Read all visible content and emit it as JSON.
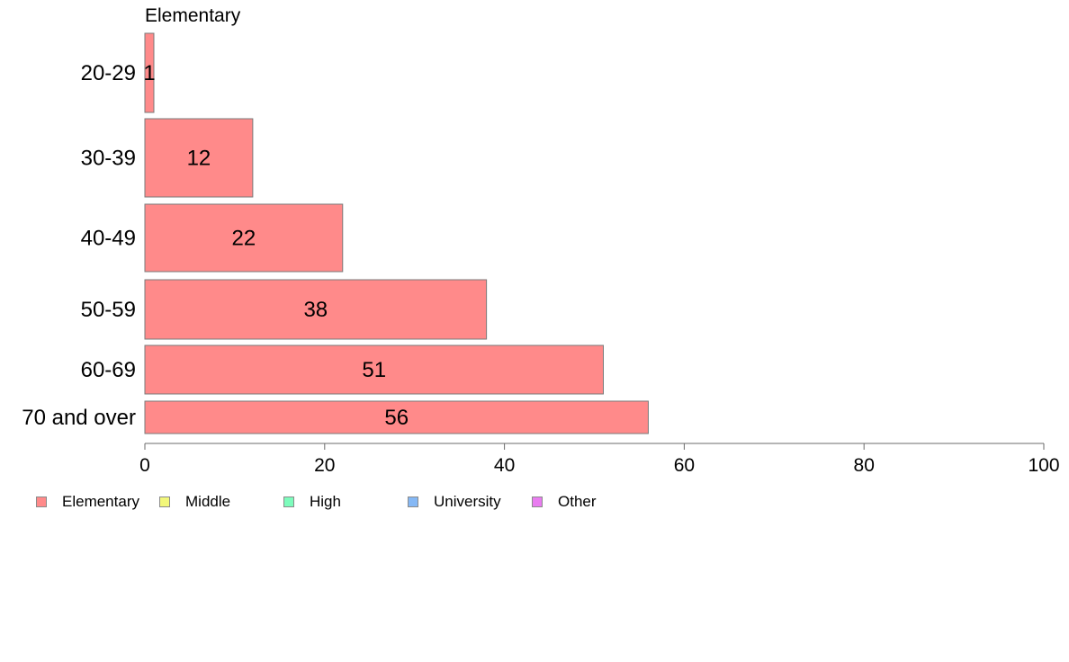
{
  "chart_data": {
    "type": "bar",
    "orientation": "horizontal",
    "panel_title": "Elementary",
    "categories": [
      "20-29",
      "30-39",
      "40-49",
      "50-59",
      "60-69",
      "70 and over"
    ],
    "series": [
      {
        "name": "Elementary",
        "values": [
          1,
          12,
          22,
          38,
          51,
          56
        ],
        "color": "#ff8a8a"
      }
    ],
    "data_labels": [
      "1",
      "12",
      "22",
      "38",
      "51",
      "56"
    ],
    "xlim": [
      0,
      100
    ],
    "xticks": [
      0,
      20,
      40,
      60,
      80,
      100
    ],
    "grid": false,
    "legend_position": "bottom-left"
  },
  "legend": {
    "items": [
      {
        "label": "Elementary",
        "color": "#ff8a8a"
      },
      {
        "label": "Middle",
        "color": "#f2f77a"
      },
      {
        "label": "High",
        "color": "#7dfcbc"
      },
      {
        "label": "University",
        "color": "#85b8f5"
      },
      {
        "label": "Other",
        "color": "#e97cf0"
      }
    ]
  }
}
